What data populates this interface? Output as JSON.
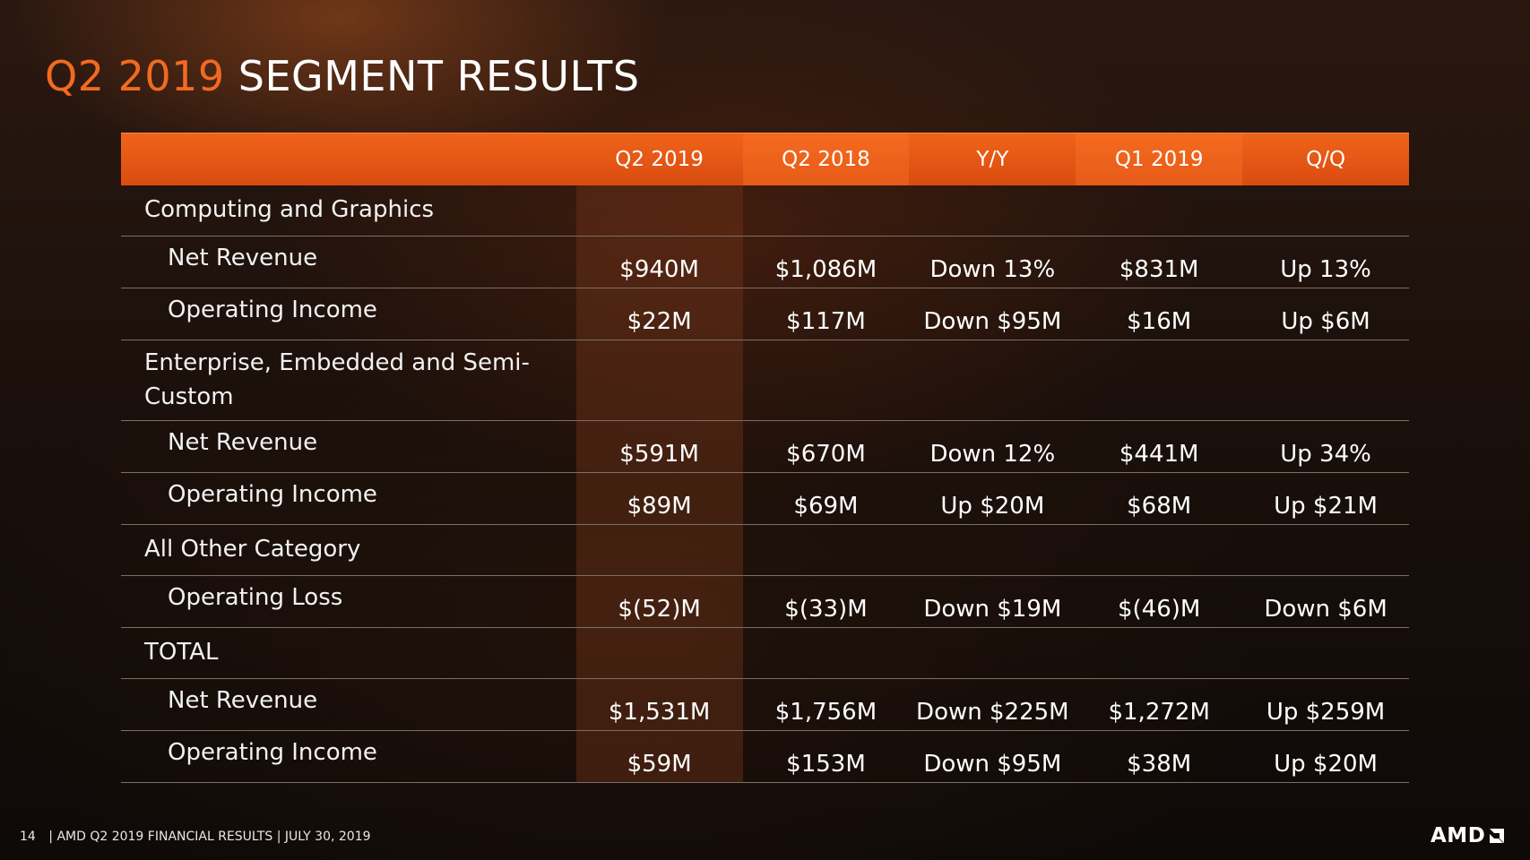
{
  "title": {
    "accent": "Q2 2019",
    "rest": "SEGMENT RESULTS"
  },
  "table": {
    "headers": [
      "Q2 2019",
      "Q2 2018",
      "Y/Y",
      "Q1 2019",
      "Q/Q"
    ],
    "rows": [
      {
        "label": "Computing and Graphics",
        "type": "group",
        "values": [
          "",
          "",
          "",
          "",
          ""
        ]
      },
      {
        "label": "Net Revenue",
        "type": "sub",
        "values": [
          "$940M",
          "$1,086M",
          "Down 13%",
          "$831M",
          "Up 13%"
        ]
      },
      {
        "label": "Operating Income",
        "type": "sub",
        "values": [
          "$22M",
          "$117M",
          "Down $95M",
          "$16M",
          "Up $6M"
        ]
      },
      {
        "label": "Enterprise, Embedded and Semi-Custom",
        "type": "group",
        "values": [
          "",
          "",
          "",
          "",
          ""
        ]
      },
      {
        "label": "Net Revenue",
        "type": "sub",
        "values": [
          "$591M",
          "$670M",
          "Down 12%",
          "$441M",
          "Up 34%"
        ]
      },
      {
        "label": "Operating Income",
        "type": "sub",
        "values": [
          "$89M",
          "$69M",
          "Up $20M",
          "$68M",
          "Up $21M"
        ]
      },
      {
        "label": "All Other Category",
        "type": "group",
        "values": [
          "",
          "",
          "",
          "",
          ""
        ]
      },
      {
        "label": "Operating Loss",
        "type": "sub",
        "values": [
          "$(52)M",
          "$(33)M",
          "Down $19M",
          "$(46)M",
          "Down $6M"
        ]
      },
      {
        "label": "TOTAL",
        "type": "group",
        "values": [
          "",
          "",
          "",
          "",
          ""
        ]
      },
      {
        "label": "Net Revenue",
        "type": "sub",
        "values": [
          "$1,531M",
          "$1,756M",
          "Down $225M",
          "$1,272M",
          "Up $259M"
        ]
      },
      {
        "label": "Operating Income",
        "type": "sub",
        "values": [
          "$59M",
          "$153M",
          "Down $95M",
          "$38M",
          "Up $20M"
        ]
      }
    ]
  },
  "footer": {
    "page": "14",
    "text": "| AMD Q2 2019 FINANCIAL RESULTS | JULY 30, 2019"
  },
  "logo": {
    "text": "AMD"
  },
  "colors": {
    "accent": "#f26a21",
    "header_bg": "#e35a16"
  }
}
